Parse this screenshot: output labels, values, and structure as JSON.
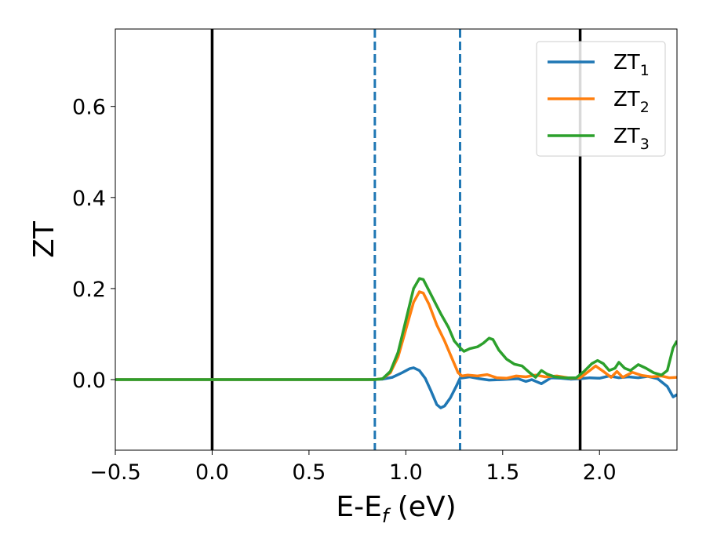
{
  "chart_data": {
    "type": "line",
    "xlabel_main": "E-E",
    "xlabel_sub": "f",
    "xlabel_unit": " (eV)",
    "ylabel": "ZT",
    "xlim": [
      -0.5,
      2.4
    ],
    "ylim": [
      -0.155,
      0.77
    ],
    "xticks": [
      -0.5,
      0.0,
      0.5,
      1.0,
      1.5,
      2.0
    ],
    "xtick_labels": [
      "−0.5",
      "0.0",
      "0.5",
      "1.0",
      "1.5",
      "2.0"
    ],
    "yticks": [
      0.0,
      0.2,
      0.4,
      0.6
    ],
    "ytick_labels": [
      "0.0",
      "0.2",
      "0.4",
      "0.6"
    ],
    "grid": false,
    "legend_position": "top-right",
    "vertical_lines": [
      {
        "x": 0.0,
        "style": "solid",
        "color": "#000000"
      },
      {
        "x": 1.9,
        "style": "solid",
        "color": "#000000"
      },
      {
        "x": 0.84,
        "style": "dashed",
        "color": "#1f77b4"
      },
      {
        "x": 1.28,
        "style": "dashed",
        "color": "#1f77b4"
      }
    ],
    "series": [
      {
        "name": "ZT",
        "name_sub": "1",
        "color": "#1f77b4",
        "points": [
          [
            -0.5,
            0
          ],
          [
            0.8,
            0
          ],
          [
            0.88,
            0.001
          ],
          [
            0.93,
            0.005
          ],
          [
            0.98,
            0.015
          ],
          [
            1.02,
            0.024
          ],
          [
            1.04,
            0.026
          ],
          [
            1.07,
            0.02
          ],
          [
            1.1,
            0.003
          ],
          [
            1.13,
            -0.025
          ],
          [
            1.16,
            -0.055
          ],
          [
            1.18,
            -0.062
          ],
          [
            1.2,
            -0.058
          ],
          [
            1.23,
            -0.04
          ],
          [
            1.26,
            -0.015
          ],
          [
            1.28,
            0.003
          ],
          [
            1.33,
            0.006
          ],
          [
            1.38,
            0.002
          ],
          [
            1.43,
            -0.001
          ],
          [
            1.5,
            0
          ],
          [
            1.58,
            0.002
          ],
          [
            1.62,
            -0.004
          ],
          [
            1.65,
            0
          ],
          [
            1.7,
            -0.009
          ],
          [
            1.75,
            0.004
          ],
          [
            1.8,
            0.003
          ],
          [
            1.85,
            0.001
          ],
          [
            1.9,
            0.002
          ],
          [
            1.95,
            0.004
          ],
          [
            2.0,
            0.003
          ],
          [
            2.05,
            0.008
          ],
          [
            2.1,
            0.004
          ],
          [
            2.15,
            0.006
          ],
          [
            2.2,
            0.004
          ],
          [
            2.25,
            0.007
          ],
          [
            2.3,
            0.002
          ],
          [
            2.35,
            -0.015
          ],
          [
            2.38,
            -0.038
          ],
          [
            2.4,
            -0.033
          ]
        ]
      },
      {
        "name": "ZT",
        "name_sub": "2",
        "color": "#ff7f0e",
        "points": [
          [
            -0.5,
            0
          ],
          [
            0.84,
            0
          ],
          [
            0.88,
            0.002
          ],
          [
            0.92,
            0.015
          ],
          [
            0.96,
            0.05
          ],
          [
            1.0,
            0.11
          ],
          [
            1.04,
            0.17
          ],
          [
            1.07,
            0.193
          ],
          [
            1.09,
            0.19
          ],
          [
            1.12,
            0.165
          ],
          [
            1.16,
            0.12
          ],
          [
            1.2,
            0.085
          ],
          [
            1.24,
            0.045
          ],
          [
            1.27,
            0.015
          ],
          [
            1.29,
            0.008
          ],
          [
            1.32,
            0.01
          ],
          [
            1.37,
            0.008
          ],
          [
            1.42,
            0.011
          ],
          [
            1.47,
            0.004
          ],
          [
            1.52,
            0.003
          ],
          [
            1.57,
            0.008
          ],
          [
            1.62,
            0.006
          ],
          [
            1.67,
            0.01
          ],
          [
            1.72,
            0.006
          ],
          [
            1.78,
            0.008
          ],
          [
            1.85,
            0.003
          ],
          [
            1.9,
            0.004
          ],
          [
            1.95,
            0.02
          ],
          [
            1.98,
            0.03
          ],
          [
            2.02,
            0.018
          ],
          [
            2.06,
            0.005
          ],
          [
            2.09,
            0.018
          ],
          [
            2.12,
            0.005
          ],
          [
            2.17,
            0.016
          ],
          [
            2.22,
            0.009
          ],
          [
            2.27,
            0.006
          ],
          [
            2.32,
            0.008
          ],
          [
            2.36,
            0.004
          ],
          [
            2.4,
            0.005
          ]
        ]
      },
      {
        "name": "ZT",
        "name_sub": "3",
        "color": "#2ca02c",
        "points": [
          [
            -0.5,
            0
          ],
          [
            0.84,
            0
          ],
          [
            0.88,
            0.002
          ],
          [
            0.92,
            0.018
          ],
          [
            0.96,
            0.06
          ],
          [
            1.0,
            0.13
          ],
          [
            1.04,
            0.2
          ],
          [
            1.07,
            0.222
          ],
          [
            1.09,
            0.22
          ],
          [
            1.12,
            0.195
          ],
          [
            1.15,
            0.17
          ],
          [
            1.18,
            0.145
          ],
          [
            1.22,
            0.115
          ],
          [
            1.25,
            0.085
          ],
          [
            1.28,
            0.07
          ],
          [
            1.3,
            0.062
          ],
          [
            1.33,
            0.068
          ],
          [
            1.37,
            0.072
          ],
          [
            1.4,
            0.08
          ],
          [
            1.43,
            0.091
          ],
          [
            1.45,
            0.088
          ],
          [
            1.48,
            0.065
          ],
          [
            1.52,
            0.045
          ],
          [
            1.56,
            0.034
          ],
          [
            1.6,
            0.03
          ],
          [
            1.64,
            0.015
          ],
          [
            1.67,
            0.005
          ],
          [
            1.7,
            0.02
          ],
          [
            1.73,
            0.012
          ],
          [
            1.77,
            0.006
          ],
          [
            1.82,
            0.004
          ],
          [
            1.88,
            0.004
          ],
          [
            1.92,
            0.018
          ],
          [
            1.96,
            0.035
          ],
          [
            1.99,
            0.042
          ],
          [
            2.02,
            0.035
          ],
          [
            2.05,
            0.02
          ],
          [
            2.08,
            0.025
          ],
          [
            2.1,
            0.038
          ],
          [
            2.13,
            0.025
          ],
          [
            2.16,
            0.02
          ],
          [
            2.2,
            0.033
          ],
          [
            2.24,
            0.025
          ],
          [
            2.28,
            0.015
          ],
          [
            2.32,
            0.01
          ],
          [
            2.35,
            0.02
          ],
          [
            2.38,
            0.07
          ],
          [
            2.4,
            0.085
          ]
        ]
      }
    ]
  }
}
